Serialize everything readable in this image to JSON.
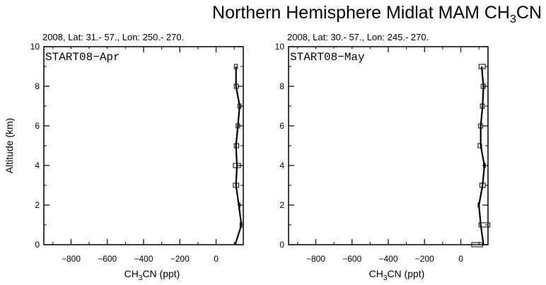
{
  "title": {
    "main": "Northern Hemisphere Midlat MAM CH",
    "sub": "3",
    "tail": "CN"
  },
  "y_axis_label": "Altitude (km)",
  "colors": {
    "line": "#000000",
    "background": "#ffffff"
  },
  "chart_data": [
    {
      "type": "line",
      "panel_label": "START08−Apr",
      "header": "2008, Lat:  31.- 57., Lon: 250.- 270.",
      "xlabel": {
        "main": "CH",
        "sub": "3",
        "tail": "CN (ppt)"
      },
      "xlim": [
        -950,
        150
      ],
      "ylim": [
        0,
        10
      ],
      "x_ticks": [
        -800,
        -600,
        -400,
        -200,
        0
      ],
      "y_ticks": [
        0,
        2,
        4,
        6,
        8,
        10
      ],
      "grid": false,
      "series": [
        {
          "values": [
            {
              "x": 105,
              "y": 0
            },
            {
              "x": 140,
              "y": 1
            },
            {
              "x": 125,
              "y": 2
            },
            {
              "x": 110,
              "y": 3
            },
            {
              "x": 115,
              "y": 4
            },
            {
              "x": 110,
              "y": 5
            },
            {
              "x": 120,
              "y": 6
            },
            {
              "x": 130,
              "y": 7
            },
            {
              "x": 110,
              "y": 8
            },
            {
              "x": 110,
              "y": 9
            }
          ]
        }
      ],
      "boxes": [
        {
          "y": 1,
          "lo": 132,
          "hi": 150
        },
        {
          "y": 2,
          "lo": 126,
          "hi": 132
        },
        {
          "y": 3,
          "lo": 95,
          "hi": 125
        },
        {
          "y": 4,
          "lo": 95,
          "hi": 135
        },
        {
          "y": 5,
          "lo": 100,
          "hi": 125
        },
        {
          "y": 6,
          "lo": 110,
          "hi": 130
        },
        {
          "y": 7,
          "lo": 120,
          "hi": 138
        },
        {
          "y": 8,
          "lo": 100,
          "hi": 123
        },
        {
          "y": 9,
          "lo": 100,
          "hi": 118
        }
      ]
    },
    {
      "type": "line",
      "panel_label": "START08−May",
      "header": "2008, Lat:  30.- 57., Lon: 245.- 270.",
      "xlabel": {
        "main": "CH",
        "sub": "3",
        "tail": "CN (ppt)"
      },
      "xlim": [
        -950,
        150
      ],
      "ylim": [
        0,
        10
      ],
      "x_ticks": [
        -800,
        -600,
        -400,
        -200,
        0
      ],
      "y_ticks": [
        0,
        2,
        4,
        6,
        8,
        10
      ],
      "grid": false,
      "series": [
        {
          "values": [
            {
              "x": 125,
              "y": 0
            },
            {
              "x": 110,
              "y": 1
            },
            {
              "x": 100,
              "y": 2
            },
            {
              "x": 120,
              "y": 3
            },
            {
              "x": 130,
              "y": 4
            },
            {
              "x": 110,
              "y": 5
            },
            {
              "x": 110,
              "y": 6
            },
            {
              "x": 120,
              "y": 7
            },
            {
              "x": 125,
              "y": 8
            },
            {
              "x": 115,
              "y": 9
            }
          ]
        }
      ],
      "boxes": [
        {
          "y": 0,
          "lo": 60,
          "hi": 120
        },
        {
          "y": 1,
          "lo": 100,
          "hi": 160
        },
        {
          "y": 2,
          "lo": 95,
          "hi": 103
        },
        {
          "y": 3,
          "lo": 105,
          "hi": 135
        },
        {
          "y": 4,
          "lo": 125,
          "hi": 135
        },
        {
          "y": 5,
          "lo": 95,
          "hi": 115
        },
        {
          "y": 6,
          "lo": 98,
          "hi": 120
        },
        {
          "y": 7,
          "lo": 108,
          "hi": 130
        },
        {
          "y": 8,
          "lo": 112,
          "hi": 135
        },
        {
          "y": 9,
          "lo": 100,
          "hi": 135
        }
      ]
    }
  ]
}
